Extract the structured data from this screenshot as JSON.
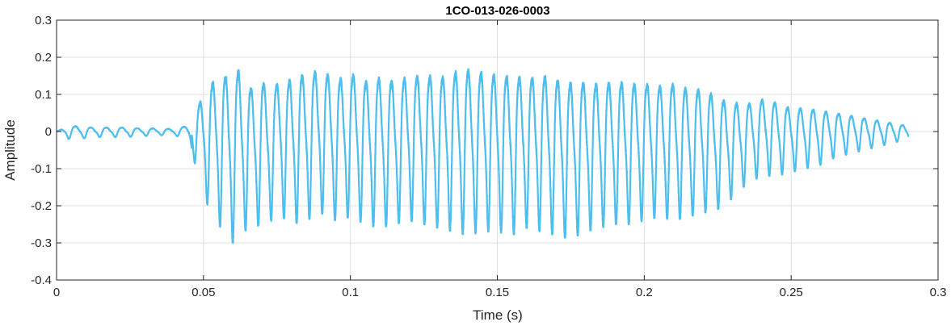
{
  "chart_data": {
    "type": "line",
    "title": "1CO-013-026-0003",
    "xlabel": "Time (s)",
    "ylabel": "Amplitude",
    "xlim": [
      0,
      0.3
    ],
    "ylim": [
      -0.4,
      0.3
    ],
    "xticks": [
      0,
      0.05,
      0.1,
      0.15,
      0.2,
      0.25,
      0.3
    ],
    "xtick_labels": [
      "0",
      "0.05",
      "0.1",
      "0.15",
      "0.2",
      "0.25",
      "0.3"
    ],
    "yticks": [
      -0.4,
      -0.3,
      -0.2,
      -0.1,
      0,
      0.1,
      0.2,
      0.3
    ],
    "ytick_labels": [
      "-0.4",
      "-0.3",
      "-0.2",
      "-0.1",
      "0",
      "0.1",
      "0.2",
      "0.3"
    ],
    "grid": true,
    "colors": {
      "line": "#4DBEEE",
      "grid": "#DFDFDF",
      "axis": "#262626"
    },
    "series": [
      {
        "x": [
          0,
          0.004,
          0.008,
          0.012,
          0.016,
          0.02,
          0.024,
          0.028,
          0.032,
          0.036,
          0.04,
          0.044,
          0.046,
          0.048,
          0.05,
          0.052,
          0.054,
          0.056,
          0.058,
          0.06,
          0.062,
          0.064,
          0.066,
          0.068,
          0.07,
          0.072,
          0.074,
          0.076,
          0.078,
          0.08,
          0.085,
          0.09,
          0.095,
          0.1,
          0.105,
          0.11,
          0.115,
          0.12,
          0.125,
          0.13,
          0.135,
          0.14,
          0.145,
          0.15,
          0.155,
          0.16,
          0.165,
          0.17,
          0.175,
          0.18,
          0.185,
          0.19,
          0.195,
          0.2,
          0.205,
          0.21,
          0.215,
          0.22,
          0.225,
          0.23,
          0.235,
          0.24,
          0.245,
          0.25,
          0.255,
          0.26,
          0.265,
          0.27,
          0.275,
          0.28,
          0.285,
          0.29
        ],
        "y": [
          0,
          0.02,
          0.02,
          0.015,
          0.015,
          0.015,
          0.015,
          0.012,
          0.012,
          0.01,
          0.01,
          0.02,
          0.05,
          0.1,
          0.14,
          0.18,
          0.2,
          0.22,
          0.22,
          0.23,
          0.24,
          0.2,
          0.18,
          0.17,
          0.2,
          0.16,
          0.17,
          0.21,
          0.19,
          0.21,
          0.22,
          0.23,
          0.2,
          0.22,
          0.2,
          0.21,
          0.2,
          0.21,
          0.22,
          0.21,
          0.23,
          0.24,
          0.23,
          0.22,
          0.22,
          0.21,
          0.22,
          0.21,
          0.2,
          0.2,
          0.19,
          0.2,
          0.19,
          0.19,
          0.18,
          0.19,
          0.17,
          0.17,
          0.14,
          0.12,
          0.11,
          0.12,
          0.11,
          0.09,
          0.09,
          0.08,
          0.07,
          0.06,
          0.05,
          0.04,
          0.03,
          0.02
        ],
        "y_lower": [
          0,
          -0.02,
          -0.02,
          -0.015,
          -0.015,
          -0.015,
          -0.015,
          -0.012,
          -0.012,
          -0.01,
          -0.01,
          -0.02,
          -0.05,
          -0.12,
          -0.17,
          -0.21,
          -0.24,
          -0.26,
          -0.28,
          -0.3,
          -0.29,
          -0.27,
          -0.25,
          -0.26,
          -0.24,
          -0.23,
          -0.25,
          -0.22,
          -0.24,
          -0.25,
          -0.24,
          -0.22,
          -0.24,
          -0.23,
          -0.25,
          -0.26,
          -0.25,
          -0.24,
          -0.25,
          -0.26,
          -0.27,
          -0.28,
          -0.27,
          -0.27,
          -0.28,
          -0.26,
          -0.27,
          -0.28,
          -0.29,
          -0.27,
          -0.26,
          -0.25,
          -0.25,
          -0.24,
          -0.23,
          -0.24,
          -0.23,
          -0.22,
          -0.21,
          -0.18,
          -0.14,
          -0.12,
          -0.12,
          -0.11,
          -0.1,
          -0.09,
          -0.07,
          -0.06,
          -0.05,
          -0.04,
          -0.03,
          -0.02
        ]
      }
    ]
  }
}
